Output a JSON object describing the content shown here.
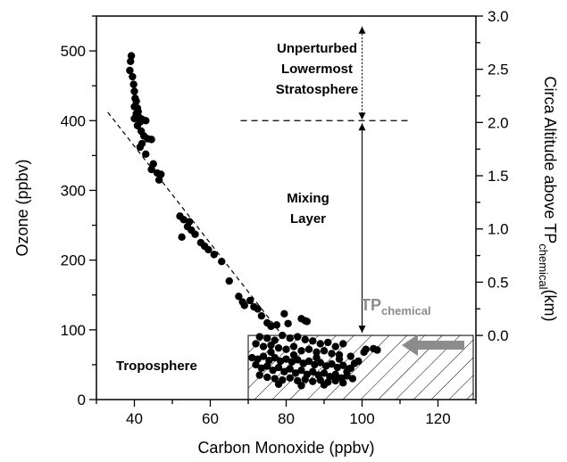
{
  "chart_data": {
    "type": "scatter",
    "xlabel": "Carbon Monoxide (ppbv)",
    "ylabel": "Ozone (ppbv)",
    "y2label": {
      "main": "Circa Altitude above TP",
      "sub": "chemical",
      "unit": "(km)"
    },
    "xlim": [
      30,
      130
    ],
    "ylim": [
      0,
      550
    ],
    "y2lim": [
      0,
      3.0
    ],
    "y2_zero_at_ozone": 92,
    "x_ticks": [
      40,
      60,
      80,
      100,
      120
    ],
    "y_ticks": [
      0,
      100,
      200,
      300,
      400,
      500
    ],
    "y2_ticks": [
      "0.0",
      "0.5",
      "1.0",
      "1.5",
      "2.0",
      "2.5",
      "3.0"
    ],
    "grid": false,
    "annotations": {
      "unperturbed": [
        "Unperturbed",
        "Lowermost",
        "Stratosphere"
      ],
      "mixing": [
        "Mixing",
        "Layer"
      ],
      "troposphere": "Troposphere",
      "tp_main": "TP",
      "tp_sub": "chemical"
    },
    "fit_line": {
      "x": [
        33,
        79
      ],
      "y": [
        412,
        92
      ]
    },
    "stratosphere_boundary_ozone": 400,
    "hatched_region": {
      "x": [
        70,
        130
      ],
      "y": [
        0,
        92
      ]
    },
    "points": [
      [
        39.2,
        493
      ],
      [
        39.0,
        485
      ],
      [
        38.8,
        472
      ],
      [
        39.5,
        463
      ],
      [
        39.8,
        452
      ],
      [
        40.0,
        442
      ],
      [
        40.2,
        432
      ],
      [
        40.5,
        428
      ],
      [
        40.0,
        420
      ],
      [
        40.8,
        418
      ],
      [
        41.0,
        413
      ],
      [
        40.5,
        410
      ],
      [
        41.2,
        405
      ],
      [
        40.0,
        403
      ],
      [
        42.0,
        402
      ],
      [
        41.5,
        398
      ],
      [
        40.8,
        393
      ],
      [
        43.0,
        400
      ],
      [
        41.8,
        385
      ],
      [
        42.5,
        378
      ],
      [
        43.5,
        374
      ],
      [
        44.5,
        373
      ],
      [
        42.0,
        367
      ],
      [
        41.5,
        362
      ],
      [
        43.0,
        352
      ],
      [
        45.0,
        338
      ],
      [
        44.5,
        330
      ],
      [
        46.0,
        325
      ],
      [
        47.0,
        323
      ],
      [
        46.5,
        315
      ],
      [
        52.0,
        263
      ],
      [
        53.0,
        258
      ],
      [
        54.5,
        255
      ],
      [
        54.0,
        248
      ],
      [
        55.0,
        243
      ],
      [
        56.0,
        237
      ],
      [
        52.5,
        233
      ],
      [
        57.5,
        225
      ],
      [
        58.5,
        220
      ],
      [
        59.5,
        215
      ],
      [
        61.0,
        208
      ],
      [
        63.0,
        198
      ],
      [
        65.0,
        170
      ],
      [
        67.5,
        148
      ],
      [
        68.5,
        140
      ],
      [
        69.0,
        135
      ],
      [
        70.5,
        142
      ],
      [
        71.5,
        133
      ],
      [
        72.5,
        130
      ],
      [
        73.5,
        120
      ],
      [
        75.0,
        110
      ],
      [
        76.0,
        105
      ],
      [
        77.5,
        107
      ],
      [
        79.5,
        123
      ],
      [
        80.5,
        109
      ],
      [
        84.0,
        116
      ],
      [
        85.0,
        113
      ],
      [
        85.5,
        112
      ],
      [
        73.0,
        90
      ],
      [
        75.0,
        88
      ],
      [
        77.0,
        85
      ],
      [
        79.0,
        92
      ],
      [
        81.0,
        88
      ],
      [
        83.0,
        90
      ],
      [
        85.0,
        86
      ],
      [
        87.0,
        84
      ],
      [
        89.0,
        80
      ],
      [
        91.0,
        82
      ],
      [
        93.0,
        76
      ],
      [
        95.0,
        80
      ],
      [
        72.0,
        80
      ],
      [
        74.0,
        76
      ],
      [
        76.0,
        78
      ],
      [
        78.0,
        74
      ],
      [
        80.0,
        72
      ],
      [
        82.0,
        76
      ],
      [
        84.0,
        70
      ],
      [
        86.0,
        72
      ],
      [
        88.0,
        68
      ],
      [
        90.0,
        70
      ],
      [
        92.0,
        66
      ],
      [
        94.0,
        64
      ],
      [
        71.0,
        60
      ],
      [
        72.5,
        58
      ],
      [
        74.0,
        62
      ],
      [
        75.5,
        56
      ],
      [
        77.0,
        60
      ],
      [
        78.5,
        55
      ],
      [
        80.0,
        58
      ],
      [
        81.5,
        54
      ],
      [
        83.0,
        57
      ],
      [
        84.5,
        52
      ],
      [
        86.0,
        55
      ],
      [
        87.5,
        50
      ],
      [
        89.0,
        53
      ],
      [
        90.5,
        48
      ],
      [
        92.0,
        51
      ],
      [
        93.5,
        46
      ],
      [
        95.0,
        49
      ],
      [
        96.5,
        44
      ],
      [
        72.0,
        50
      ],
      [
        73.5,
        45
      ],
      [
        75.0,
        48
      ],
      [
        76.5,
        42
      ],
      [
        78.0,
        46
      ],
      [
        79.5,
        40
      ],
      [
        81.0,
        44
      ],
      [
        82.5,
        38
      ],
      [
        84.0,
        42
      ],
      [
        85.5,
        36
      ],
      [
        87.0,
        40
      ],
      [
        88.5,
        35
      ],
      [
        90.0,
        38
      ],
      [
        91.5,
        33
      ],
      [
        93.0,
        36
      ],
      [
        94.5,
        31
      ],
      [
        96.0,
        34
      ],
      [
        97.5,
        30
      ],
      [
        73.0,
        35
      ],
      [
        75.0,
        32
      ],
      [
        77.0,
        30
      ],
      [
        79.0,
        28
      ],
      [
        81.0,
        31
      ],
      [
        83.0,
        27
      ],
      [
        85.0,
        29
      ],
      [
        87.0,
        26
      ],
      [
        89.0,
        28
      ],
      [
        91.0,
        25
      ],
      [
        93.0,
        27
      ],
      [
        95.0,
        24
      ],
      [
        76.0,
        68
      ],
      [
        82.0,
        64
      ],
      [
        88.0,
        60
      ],
      [
        94.0,
        58
      ],
      [
        97.0,
        62
      ],
      [
        98.0,
        52
      ],
      [
        78.0,
        22
      ],
      [
        84.0,
        20
      ],
      [
        90.0,
        21
      ],
      [
        96.0,
        40
      ],
      [
        97.0,
        45
      ],
      [
        99.0,
        55
      ],
      [
        101.0,
        72
      ],
      [
        103.0,
        73
      ],
      [
        104.0,
        71
      ],
      [
        100.5,
        68
      ]
    ]
  }
}
